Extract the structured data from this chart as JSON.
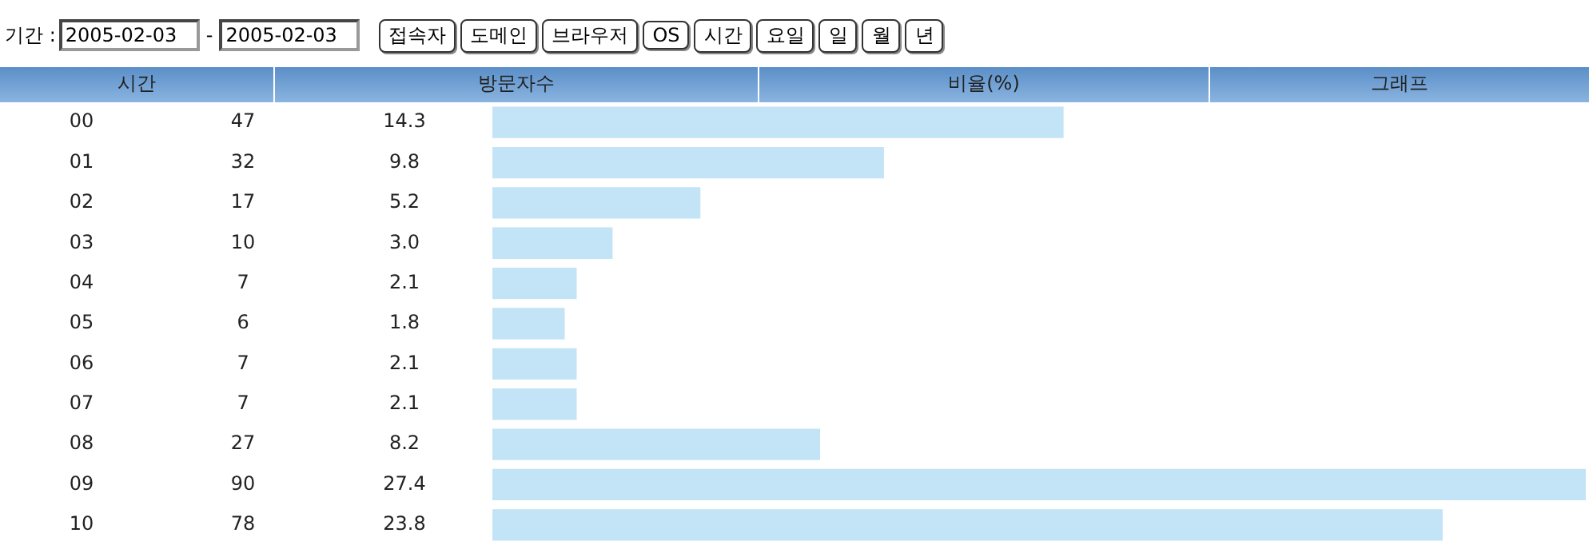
{
  "chart_data": {
    "type": "bar",
    "orientation": "horizontal",
    "ylabel": "시간",
    "categories": [
      "00",
      "01",
      "02",
      "03",
      "04",
      "05",
      "06",
      "07",
      "08",
      "09",
      "10"
    ],
    "values": [
      14.3,
      9.8,
      5.2,
      3.0,
      2.1,
      1.8,
      2.1,
      2.1,
      8.2,
      27.4,
      23.8
    ],
    "value_labels": [
      "14.3",
      "9.8",
      "5.2",
      "3.0",
      "2.1",
      "1.8",
      "2.1",
      "2.1",
      "8.2",
      "27.4",
      "23.8"
    ],
    "color": "#c3e4f6",
    "annotations": [
      "기간 :",
      "2005-02-03",
      "-",
      "2005-02-03",
      "접속자",
      "도메인",
      "브라우저",
      "OS",
      "시간",
      "요일",
      "일",
      "월",
      "년",
      "방문자수",
      "비율(%)",
      "그래프",
      "47",
      "32",
      "17",
      "10",
      "7",
      "6",
      "7",
      "7",
      "27",
      "90",
      "78"
    ]
  }
}
